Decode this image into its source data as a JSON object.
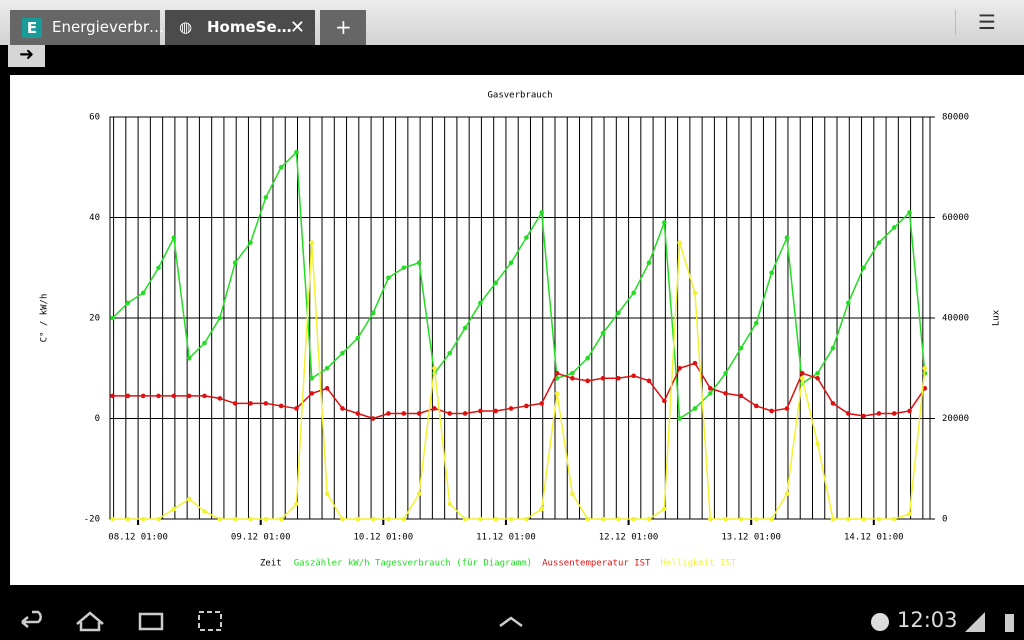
{
  "browser": {
    "tabs": [
      {
        "title": "Energieverbr…"
      },
      {
        "title": "HomeSe…"
      }
    ],
    "new_tab": "+"
  },
  "status": {
    "time": "12:03"
  },
  "chart_data": {
    "type": "line",
    "title": "Gasverbrauch",
    "y_label": "C° / kW/h",
    "y2_label": "Lux",
    "legend_title": "Zeit",
    "x": [
      "07.12 20:00",
      "07.12 23:00",
      "08.12 02:00",
      "08.12 05:00",
      "08.12 08:00",
      "08.12 11:00",
      "08.12 14:00",
      "08.12 17:00",
      "08.12 20:00",
      "08.12 23:00",
      "09.12 02:00",
      "09.12 05:00",
      "09.12 08:00",
      "09.12 11:00",
      "09.12 14:00",
      "09.12 17:00",
      "09.12 20:00",
      "09.12 23:00",
      "10.12 02:00",
      "10.12 05:00",
      "10.12 08:00",
      "10.12 11:00",
      "10.12 14:00",
      "10.12 17:00",
      "10.12 20:00",
      "10.12 23:00",
      "11.12 02:00",
      "11.12 05:00",
      "11.12 08:00",
      "11.12 11:00",
      "11.12 14:00",
      "11.12 17:00",
      "11.12 20:00",
      "11.12 23:00",
      "12.12 02:00",
      "12.12 05:00",
      "12.12 08:00",
      "12.12 11:00",
      "12.12 14:00",
      "12.12 17:00",
      "12.12 20:00",
      "12.12 23:00",
      "13.12 02:00",
      "13.12 05:00",
      "13.12 08:00",
      "13.12 11:00",
      "13.12 14:00",
      "13.12 17:00",
      "13.12 20:00",
      "13.12 23:00",
      "14.12 02:00",
      "14.12 05:00",
      "14.12 08:00",
      "14.12 11:00"
    ],
    "xlim": [
      "07.12 19:30",
      "14.12 12:00"
    ],
    "xticks": [
      "08.12 01:00",
      "09.12 01:00",
      "10.12 01:00",
      "11.12 01:00",
      "12.12 01:00",
      "13.12 01:00",
      "14.12 01:00"
    ],
    "ylim": [
      -20,
      60
    ],
    "yticks": [
      -20,
      0,
      20,
      40,
      60
    ],
    "y2lim": [
      0,
      80000
    ],
    "y2ticks": [
      0,
      20000,
      40000,
      60000,
      80000
    ],
    "grid": true,
    "series": [
      {
        "name": "Gaszähler kW/h Tagesverbrauch (für Diagramm)",
        "color": "#22dd22",
        "values": [
          20,
          23,
          25,
          30,
          36,
          12,
          15,
          20,
          31,
          35,
          44,
          50,
          53,
          8,
          10,
          13,
          16,
          21,
          28,
          30,
          31,
          9,
          13,
          18,
          23,
          27,
          31,
          36,
          41,
          8,
          9,
          12,
          17,
          21,
          25,
          31,
          39,
          0,
          2,
          5,
          9,
          14,
          19,
          29,
          36,
          7,
          9,
          14,
          23,
          30,
          35,
          38,
          41,
          9
        ]
      },
      {
        "name": "Aussentemperatur IST",
        "color": "#dd1111",
        "values": [
          4.5,
          4.5,
          4.5,
          4.5,
          4.5,
          4.5,
          4.5,
          4,
          3,
          3,
          3,
          2.5,
          2,
          5,
          6,
          2,
          1,
          0,
          1,
          1,
          1,
          2,
          1,
          1,
          1.5,
          1.5,
          2,
          2.5,
          3,
          9,
          8,
          7.5,
          8,
          8,
          8.5,
          7.5,
          3.5,
          10,
          11,
          6,
          5,
          4.5,
          2.5,
          1.5,
          2,
          9,
          8,
          3,
          1,
          0.5,
          1,
          1,
          1.5,
          6
        ]
      },
      {
        "name": "Helligkeit IST",
        "color": "#f2f230",
        "axis": "y2",
        "values": [
          0,
          0,
          0,
          0,
          2000,
          4000,
          1500,
          0,
          0,
          0,
          0,
          0,
          3000,
          55000,
          5000,
          0,
          0,
          0,
          0,
          0,
          5000,
          30000,
          3000,
          0,
          0,
          0,
          0,
          0,
          2000,
          25000,
          5000,
          0,
          0,
          0,
          0,
          0,
          2000,
          55000,
          45000,
          0,
          0,
          0,
          0,
          0,
          5000,
          28000,
          15000,
          0,
          0,
          0,
          0,
          0,
          1000,
          30000
        ]
      }
    ]
  }
}
